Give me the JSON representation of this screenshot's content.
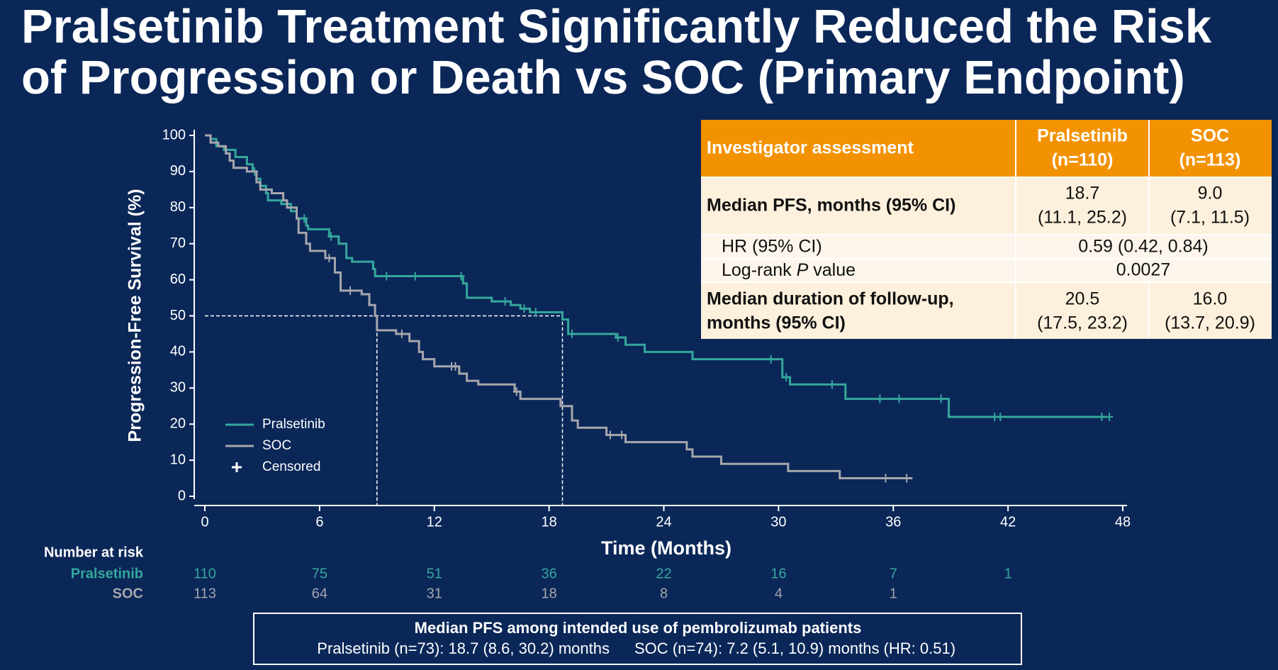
{
  "title": [
    "Pralsetinib Treatment Significantly Reduced the Risk",
    "of Progression or Death vs SOC (Primary Endpoint)"
  ],
  "chart_data": {
    "type": "step",
    "xlabel": "Time (Months)",
    "ylabel": "Progression-Free Survival (%)",
    "xlim": [
      0,
      48
    ],
    "xticks": [
      0,
      6,
      12,
      18,
      24,
      30,
      36,
      42,
      48
    ],
    "ylim": [
      0,
      100
    ],
    "yticks": [
      0,
      10,
      20,
      30,
      40,
      50,
      60,
      70,
      80,
      90,
      100
    ],
    "censored_label": "Censored",
    "median_lines": {
      "y": 50,
      "x": [
        18.7,
        9.0
      ]
    },
    "series": [
      {
        "name": "Pralsetinib",
        "color": "#35a79c",
        "x": [
          0,
          0.3,
          0.6,
          1,
          1.6,
          2.2,
          2.5,
          2.7,
          2.9,
          3.2,
          3.3,
          4,
          4.5,
          4.8,
          5.3,
          5.4,
          6.5,
          7,
          7.4,
          7.7,
          8.8,
          8.9,
          13.5,
          13.7,
          15,
          16,
          16.5,
          17,
          18.7,
          19,
          21.5,
          22,
          23,
          25.5,
          30.2,
          30.6,
          33.5,
          38.9,
          47.2
        ],
        "values": [
          100,
          99,
          97,
          96,
          94,
          92,
          90,
          88,
          86,
          84,
          82,
          81,
          79,
          77,
          75,
          74,
          72,
          70,
          66,
          65,
          63,
          61,
          59,
          55,
          54,
          53,
          52,
          51,
          49,
          45,
          44,
          42,
          40,
          38,
          33,
          31,
          27,
          22,
          22
        ],
        "censored_x": [
          2.6,
          5.2,
          6.6,
          9.5,
          11,
          13.4,
          15.7,
          16.7,
          17.3,
          19.2,
          21.6,
          29.6,
          30.4,
          32.8,
          35.3,
          36.3,
          38.5,
          41.3,
          41.6,
          46.9,
          47.3
        ],
        "censored_y": [
          90,
          77,
          72,
          61,
          61,
          61,
          54,
          52,
          51,
          45,
          44,
          38,
          33,
          31,
          27,
          27,
          27,
          22,
          22,
          22,
          22
        ]
      },
      {
        "name": "SOC",
        "color": "#a6a6ab",
        "x": [
          0,
          0.3,
          0.7,
          1.1,
          1.3,
          1.5,
          2.2,
          2.7,
          2.9,
          3.5,
          4.1,
          4.3,
          4.8,
          4.9,
          5.3,
          5.5,
          6.3,
          6.8,
          7.1,
          8.2,
          8.6,
          8.9,
          9.0,
          10,
          10.7,
          11.2,
          11.4,
          12,
          13.3,
          13.7,
          14.3,
          16.2,
          16.5,
          18.6,
          19.2,
          19.5,
          21,
          22,
          25.2,
          25.5,
          27,
          30.5,
          33.2,
          37
        ],
        "values": [
          100,
          98,
          97,
          95,
          93,
          91,
          90,
          87,
          85,
          84,
          82,
          80,
          77,
          73,
          70,
          68,
          66,
          62,
          57,
          56,
          53,
          50,
          46,
          45,
          43,
          40,
          38,
          36,
          34,
          32,
          31,
          29,
          27,
          25,
          21,
          19,
          17,
          15,
          13,
          11,
          9,
          7,
          5,
          5
        ],
        "censored_x": [
          6.5,
          7.6,
          10.3,
          12.9,
          13.1,
          16.3,
          21.2,
          21.8,
          35.6,
          36.7
        ],
        "censored_y": [
          66,
          57,
          45,
          36,
          36,
          29,
          17,
          17,
          5,
          5
        ]
      }
    ],
    "risk_table": {
      "title": "Number at risk",
      "rows": [
        {
          "name": "Pralsetinib",
          "values": [
            110,
            75,
            51,
            36,
            22,
            16,
            7,
            1
          ]
        },
        {
          "name": "SOC",
          "values": [
            113,
            64,
            31,
            18,
            8,
            4,
            1
          ]
        }
      ]
    }
  },
  "table": {
    "header": {
      "label": "Investigator assessment",
      "columns": [
        [
          "Pralsetinib",
          "(n=110)"
        ],
        [
          "SOC",
          "(n=113)"
        ]
      ]
    },
    "median_pfs": {
      "label": "Median PFS, months (95% CI)",
      "cells": [
        [
          "18.7",
          "(11.1, 25.2)"
        ],
        [
          "9.0",
          "(7.1, 11.5)"
        ]
      ]
    },
    "hr": {
      "label": "HR (95% CI)",
      "value": "0.59 (0.42, 0.84)"
    },
    "logrank": {
      "label": [
        "Log-rank",
        "P",
        "value"
      ],
      "value": "0.0027"
    },
    "follow_up": {
      "label": [
        "Median duration of follow-up,",
        "months (95% CI)"
      ],
      "cells": [
        [
          "20.5",
          "(17.5, 23.2)"
        ],
        [
          "16.0",
          "(13.7, 20.9)"
        ]
      ]
    }
  },
  "note": {
    "title": "Median PFS among intended use of pembrolizumab patients",
    "lines": [
      "Pralsetinib (n=73): 18.7 (8.6, 30.2) months",
      "SOC (n=74): 7.2 (5.1, 10.9) months (HR: 0.51)"
    ]
  }
}
